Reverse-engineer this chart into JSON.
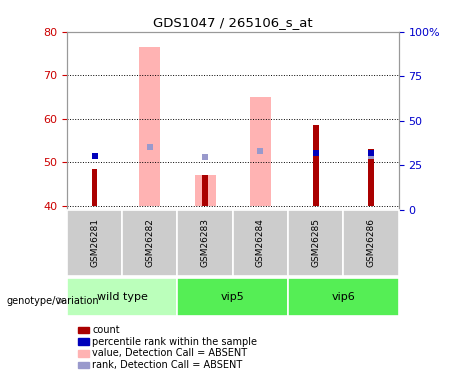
{
  "title": "GDS1047 / 265106_s_at",
  "samples": [
    "GSM26281",
    "GSM26282",
    "GSM26283",
    "GSM26284",
    "GSM26285",
    "GSM26286"
  ],
  "ylim_left": [
    39,
    80
  ],
  "ylim_right": [
    0,
    100
  ],
  "yticks_left": [
    40,
    50,
    60,
    70,
    80
  ],
  "yticks_right": [
    0,
    25,
    50,
    75,
    100
  ],
  "ytick_labels_right": [
    "0",
    "25",
    "50",
    "75",
    "100%"
  ],
  "count_bars": {
    "GSM26281": 48.5,
    "GSM26282": 40,
    "GSM26283": 47.0,
    "GSM26284": 40,
    "GSM26285": 58.5,
    "GSM26286": 53.0
  },
  "value_absent_bars": {
    "GSM26281": 40,
    "GSM26282": 76.5,
    "GSM26283": 47.0,
    "GSM26284": 65.0,
    "GSM26285": 40,
    "GSM26286": 40
  },
  "rank_absent_markers": {
    "GSM26282": 53.5,
    "GSM26283": 51.3,
    "GSM26284": 52.5,
    "GSM26286": 51.5
  },
  "percentile_markers": {
    "GSM26281": 51.5,
    "GSM26285": 52.2,
    "GSM26286": 52.2
  },
  "bar_bottom": 40,
  "bar_color_count": "#aa0000",
  "bar_color_absent": "#ffb3b3",
  "marker_color_rank": "#9999cc",
  "marker_color_percentile": "#0000bb",
  "left_axis_color": "#cc0000",
  "right_axis_color": "#0000cc",
  "sample_bg_color": "#cccccc",
  "wildtype_color": "#bbffbb",
  "vip_color": "#55ee55",
  "group_defs": [
    {
      "name": "wild type",
      "start": 0,
      "end": 1,
      "color": "#bbffbb"
    },
    {
      "name": "vip5",
      "start": 2,
      "end": 3,
      "color": "#55ee55"
    },
    {
      "name": "vip6",
      "start": 4,
      "end": 5,
      "color": "#55ee55"
    }
  ],
  "legend_items": [
    {
      "color": "#aa0000",
      "label": "count"
    },
    {
      "color": "#0000bb",
      "label": "percentile rank within the sample"
    },
    {
      "color": "#ffb3b3",
      "label": "value, Detection Call = ABSENT"
    },
    {
      "color": "#9999cc",
      "label": "rank, Detection Call = ABSENT"
    }
  ]
}
